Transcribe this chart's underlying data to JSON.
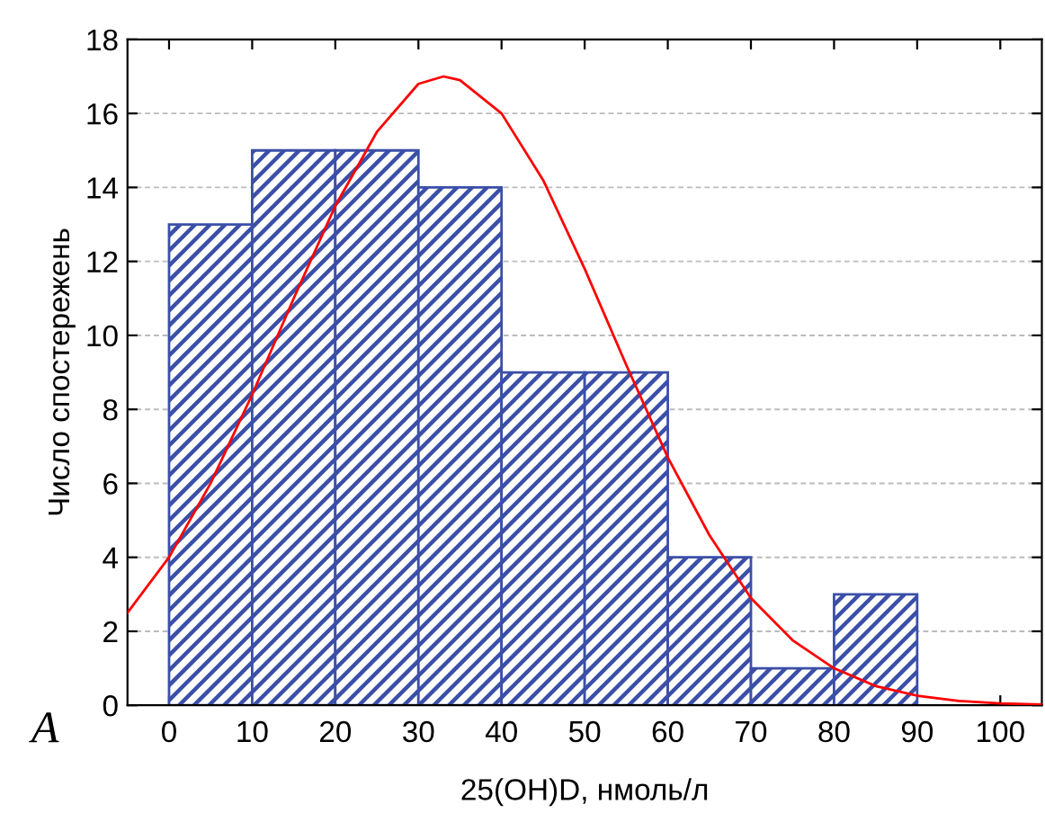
{
  "chart_data": {
    "type": "histogram",
    "xlabel": "25(OH)D, нмоль/л",
    "ylabel": "Число спостережень",
    "bins": [
      0,
      10,
      20,
      30,
      40,
      50,
      60,
      70,
      80,
      90
    ],
    "values": [
      13,
      15,
      15,
      14,
      9,
      9,
      4,
      1,
      3
    ],
    "color": "#3b4fa8",
    "series": [
      {
        "type": "line",
        "color": "#ff0000",
        "x": [
          -5,
          0,
          5,
          10,
          15,
          20,
          25,
          30,
          33,
          35,
          40,
          45,
          50,
          55,
          60,
          65,
          70,
          75,
          80,
          85,
          90,
          95,
          100,
          105
        ],
        "values": [
          2.5,
          4.0,
          6.0,
          8.4,
          11.0,
          13.5,
          15.5,
          16.8,
          17.0,
          16.9,
          16.0,
          14.2,
          11.8,
          9.2,
          6.7,
          4.6,
          2.9,
          1.76,
          1.0,
          0.52,
          0.26,
          0.12,
          0.05,
          0.02
        ]
      }
    ],
    "xlim": [
      -5,
      105
    ],
    "xticks": [
      0,
      10,
      20,
      30,
      40,
      50,
      60,
      70,
      80,
      90,
      100
    ],
    "ylim": [
      0,
      18
    ],
    "yticks": [
      0,
      2,
      4,
      6,
      8,
      10,
      12,
      14,
      16,
      18
    ],
    "grid": "y",
    "legend": false,
    "annotations": [
      "A"
    ]
  }
}
